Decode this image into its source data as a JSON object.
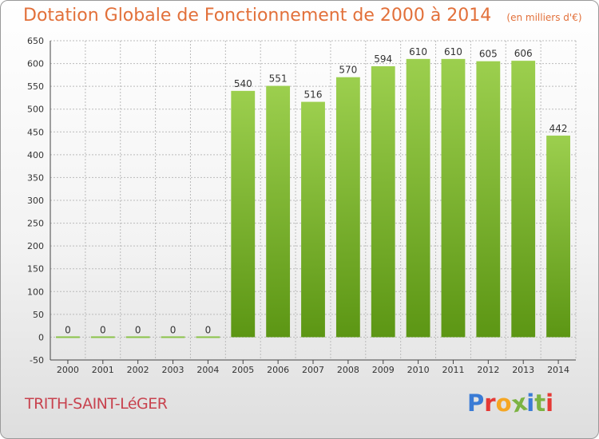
{
  "chart_data": {
    "type": "bar",
    "title": "Dotation Globale de Fonctionnement de 2000 à 2014",
    "subtitle": "(en milliers d'€)",
    "categories": [
      "2000",
      "2001",
      "2002",
      "2003",
      "2004",
      "2005",
      "2006",
      "2007",
      "2008",
      "2009",
      "2010",
      "2011",
      "2012",
      "2013",
      "2014"
    ],
    "values": [
      0,
      0,
      0,
      0,
      0,
      540,
      551,
      516,
      570,
      594,
      610,
      610,
      605,
      606,
      442
    ],
    "value_labels": [
      "0",
      "0",
      "0",
      "0",
      "0",
      "540",
      "551",
      "516",
      "570",
      "594",
      "610",
      "610",
      "605",
      "606",
      "442"
    ],
    "ylim": [
      -50,
      650
    ],
    "yticks": [
      "-50",
      "0",
      "50",
      "100",
      "150",
      "200",
      "250",
      "300",
      "350",
      "400",
      "450",
      "500",
      "550",
      "600",
      "650"
    ],
    "grid": true,
    "colors": {
      "bar_top": "#9ccf4e",
      "bar_bottom": "#5c9614",
      "grid": "#bbbbbb",
      "zero_bar": "#8bc34a"
    }
  },
  "commune": "TRITH-SAINT-LéGER",
  "brand": {
    "text": "Proxiti",
    "colors": [
      "#3a7bd5",
      "#e53935",
      "#f5a623",
      "#7cb342",
      "#3a7bd5",
      "#7cb342",
      "#e53935"
    ]
  }
}
